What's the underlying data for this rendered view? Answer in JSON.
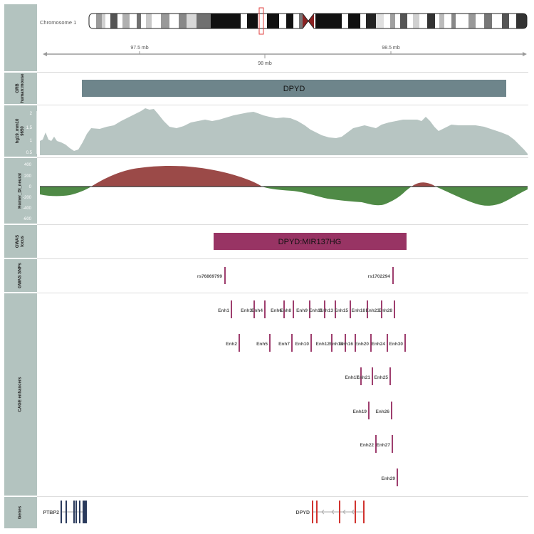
{
  "ideogram": {
    "chromosome_label": "Chromosome 1",
    "ticks": [
      {
        "label": "97.5 mb",
        "pos_mb": 97.5
      },
      {
        "label": "98 mb",
        "pos_mb": 98.0
      },
      {
        "label": "98.5 mb",
        "pos_mb": 98.5
      }
    ]
  },
  "tracks": [
    {
      "id": "grb",
      "label": "GRB\nhuman:mouse"
    },
    {
      "id": "cons",
      "label": "hg19_mm10\n9650"
    },
    {
      "id": "homer",
      "label": "Homer_DI_neural"
    },
    {
      "id": "gwas_locus",
      "label": "GWAS\nlocus"
    },
    {
      "id": "gwas_snps",
      "label": "GWAS SNPs"
    },
    {
      "id": "cage",
      "label": "CAGE enhancers"
    },
    {
      "id": "genes",
      "label": "Genes"
    }
  ],
  "grb": {
    "name": "DPYD",
    "color": "#6e858b"
  },
  "conservation": {
    "y_ticks": [
      "2",
      "1.5",
      "1",
      "0.5"
    ],
    "color": "#b7c5c2"
  },
  "homer": {
    "y_ticks": [
      "400",
      "200",
      "0",
      "-200",
      "-400",
      "-600"
    ],
    "pos_color": "#9b4a48",
    "neg_color": "#4f8a46"
  },
  "gwas_locus": {
    "name": "DPYD:MIR137HG",
    "color": "#983464"
  },
  "gwas_snps": [
    {
      "name": "rs76869799"
    },
    {
      "name": "rs1702294"
    }
  ],
  "enhancers": [
    {
      "name": "Enh1"
    },
    {
      "name": "Enh2"
    },
    {
      "name": "Enh3"
    },
    {
      "name": "Enh4"
    },
    {
      "name": "Enh5"
    },
    {
      "name": "Enh6"
    },
    {
      "name": "Enh7"
    },
    {
      "name": "Enh8"
    },
    {
      "name": "Enh9"
    },
    {
      "name": "Enh10"
    },
    {
      "name": "Enh11"
    },
    {
      "name": "Enh12"
    },
    {
      "name": "Enh13"
    },
    {
      "name": "Enh14"
    },
    {
      "name": "Enh15"
    },
    {
      "name": "Enh16"
    },
    {
      "name": "Enh17"
    },
    {
      "name": "Enh18"
    },
    {
      "name": "Enh19"
    },
    {
      "name": "Enh20"
    },
    {
      "name": "Enh21"
    },
    {
      "name": "Enh22"
    },
    {
      "name": "Enh23"
    },
    {
      "name": "Enh24"
    },
    {
      "name": "Enh25"
    },
    {
      "name": "Enh26"
    },
    {
      "name": "Enh27"
    },
    {
      "name": "Enh28"
    },
    {
      "name": "Enh29"
    },
    {
      "name": "Enh30"
    }
  ],
  "genes": [
    {
      "name": "PTBP2",
      "color": "#2a3a5c"
    },
    {
      "name": "DPYD",
      "color": "#d1332f"
    }
  ],
  "enhancer_color": "#9e3e6e"
}
